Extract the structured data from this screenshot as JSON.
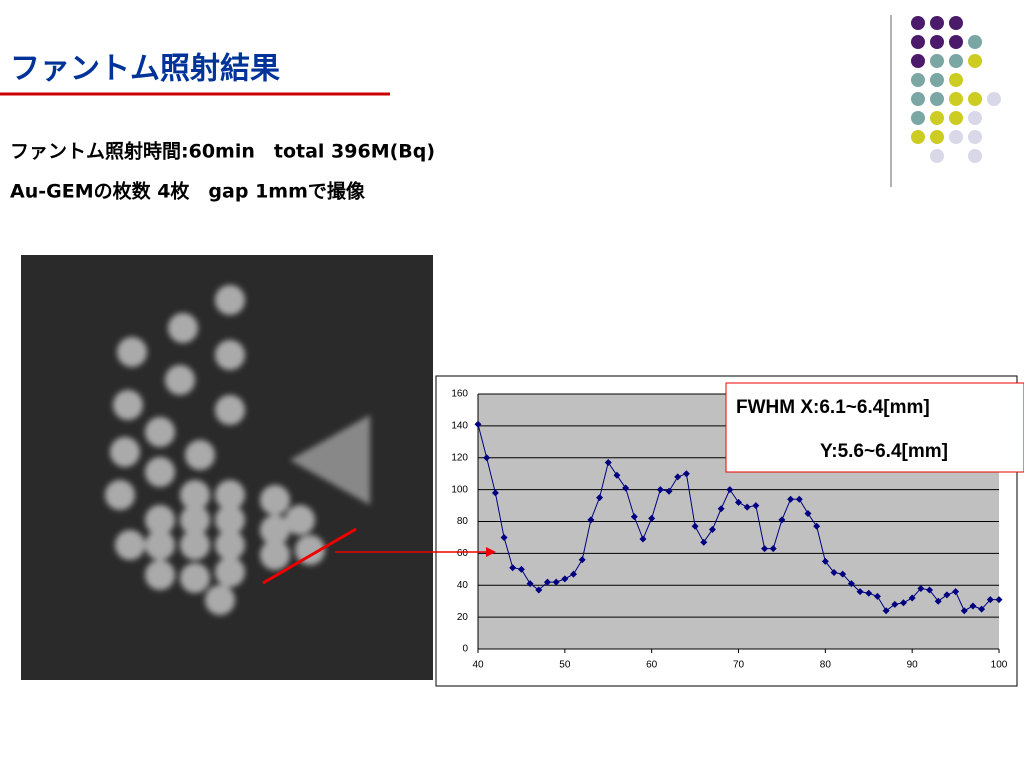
{
  "header": {
    "title": "ファントム照射結果",
    "lines": [
      "ファントム照射時間:60min　total 396M(Bq)",
      "Au-GEMの枚数 4枚　gap 1mmで撮像"
    ]
  },
  "chart_data": {
    "type": "line",
    "annotations": [
      "FWHM X:6.1~6.4[mm]",
      "Y:5.6~6.4[mm]"
    ],
    "x": [
      40,
      41,
      42,
      43,
      44,
      45,
      46,
      47,
      48,
      49,
      50,
      51,
      52,
      53,
      54,
      55,
      56,
      57,
      58,
      59,
      60,
      61,
      62,
      63,
      64,
      65,
      66,
      67,
      68,
      69,
      70,
      71,
      72,
      73,
      74,
      75,
      76,
      77,
      78,
      79,
      80,
      81,
      82,
      83,
      84,
      85,
      86,
      87,
      88,
      89,
      90,
      91,
      92,
      93,
      94,
      95,
      96,
      97,
      98,
      99,
      100
    ],
    "values": [
      141,
      120,
      98,
      70,
      51,
      50,
      41,
      37,
      42,
      42,
      44,
      47,
      56,
      81,
      95,
      117,
      109,
      101,
      83,
      69,
      82,
      100,
      99,
      108,
      110,
      77,
      67,
      75,
      88,
      100,
      92,
      89,
      90,
      63,
      63,
      81,
      94,
      94,
      85,
      77,
      55,
      48,
      47,
      41,
      36,
      35,
      33,
      24,
      28,
      29,
      32,
      38,
      37,
      30,
      34,
      36,
      24,
      27,
      25,
      31,
      31
    ],
    "color": "#000080",
    "xlim": [
      40,
      100
    ],
    "xticks": [
      40,
      50,
      60,
      70,
      80,
      90,
      100
    ],
    "ylim": [
      0,
      160
    ],
    "yticks": [
      0,
      20,
      40,
      60,
      80,
      100,
      120,
      140,
      160
    ],
    "grid": true
  }
}
